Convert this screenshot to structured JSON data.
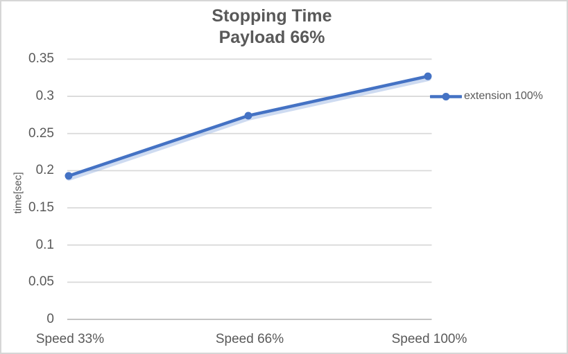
{
  "chart_data": {
    "type": "line",
    "title": "Stopping Time",
    "subtitle": "Payload 66%",
    "categories": [
      "Speed 33%",
      "Speed 66%",
      "Speed 100%"
    ],
    "series": [
      {
        "name": "extension 100%",
        "values": [
          0.193,
          0.274,
          0.327
        ]
      }
    ],
    "xlabel": "",
    "ylabel": "time[sec]",
    "ylim": [
      0,
      0.35
    ],
    "ytick_step": 0.05,
    "ytick_labels": [
      "0",
      "0.05",
      "0.1",
      "0.15",
      "0.2",
      "0.25",
      "0.3",
      "0.35"
    ],
    "grid": true,
    "legend_position": "right"
  },
  "colors": {
    "series_line": "#4472C4",
    "series_glow": "#9DB8E4",
    "marker": "#4472C4",
    "text": "#595959",
    "gridline": "#D9D9D9",
    "axis_line": "#C4C4C4",
    "chart_border": "#D6D6D6",
    "background": "#FFFFFF"
  }
}
